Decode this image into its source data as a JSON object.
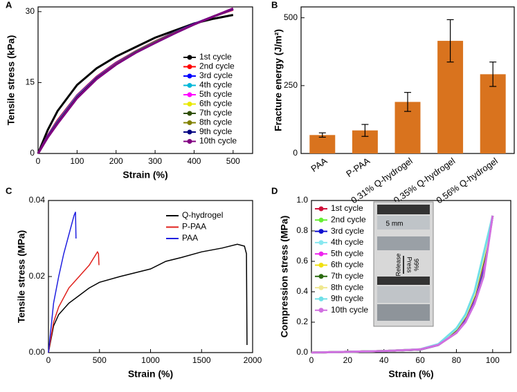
{
  "chart_data": [
    {
      "type": "line",
      "panel": "A",
      "xlabel": "Strain (%)",
      "ylabel": "Tensile stress (kPa)",
      "xlim": [
        0,
        550
      ],
      "ylim": [
        0,
        31
      ],
      "xticks": [
        0,
        100,
        200,
        300,
        400,
        500
      ],
      "yticks": [
        0,
        15,
        30
      ],
      "legend": "lower right",
      "x": [
        0,
        25,
        50,
        100,
        150,
        200,
        250,
        300,
        350,
        400,
        450,
        500
      ],
      "series": [
        {
          "name": "1st cycle",
          "color": "#000000",
          "values": [
            0,
            5,
            9,
            14.5,
            18,
            20.5,
            22.5,
            24.5,
            26,
            27.5,
            28.5,
            29.3
          ]
        },
        {
          "name": "2nd cycle",
          "color": "#ff0000",
          "values": [
            0,
            3.8,
            7,
            12.3,
            16.2,
            19.2,
            21.6,
            23.7,
            25.6,
            27.4,
            29,
            30.4
          ]
        },
        {
          "name": "3rd cycle",
          "color": "#0000ff",
          "values": [
            0,
            3.7,
            6.8,
            12.2,
            16.1,
            19.1,
            21.5,
            23.6,
            25.6,
            27.4,
            29,
            30.5
          ]
        },
        {
          "name": "4th cycle",
          "color": "#00b7d8",
          "values": [
            0,
            3.6,
            6.7,
            12.1,
            16,
            19,
            21.5,
            23.6,
            25.5,
            27.3,
            29,
            30.5
          ]
        },
        {
          "name": "5th cycle",
          "color": "#ff00ff",
          "values": [
            0,
            3.6,
            6.6,
            12,
            16,
            19,
            21.4,
            23.5,
            25.5,
            27.3,
            29,
            30.5
          ]
        },
        {
          "name": "6th cycle",
          "color": "#e8e800",
          "values": [
            0,
            3.5,
            6.5,
            11.9,
            15.9,
            18.9,
            21.4,
            23.5,
            25.5,
            27.3,
            29,
            30.6
          ]
        },
        {
          "name": "7th cycle",
          "color": "#2f4f00",
          "values": [
            0,
            3.5,
            6.5,
            11.9,
            15.9,
            18.9,
            21.4,
            23.5,
            25.5,
            27.3,
            29,
            30.6
          ]
        },
        {
          "name": "8th cycle",
          "color": "#808000",
          "values": [
            0,
            3.5,
            6.4,
            11.8,
            15.8,
            18.9,
            21.3,
            23.5,
            25.5,
            27.3,
            29,
            30.6
          ]
        },
        {
          "name": "9th cycle",
          "color": "#000080",
          "values": [
            0,
            3.5,
            6.4,
            11.8,
            15.8,
            18.8,
            21.3,
            23.4,
            25.4,
            27.3,
            29,
            30.6
          ]
        },
        {
          "name": "10th cycle",
          "color": "#800080",
          "values": [
            0,
            3.4,
            6.3,
            11.7,
            15.7,
            18.8,
            21.3,
            23.4,
            25.4,
            27.3,
            29,
            30.7
          ]
        }
      ]
    },
    {
      "type": "bar",
      "panel": "B",
      "ylabel": "Fracture energy (J/m²)",
      "ylim": [
        0,
        540
      ],
      "yticks": [
        0,
        250,
        500
      ],
      "color": "#d9731e",
      "categories": [
        "PAA",
        "P-PAA",
        "0.31% Q-hydrogel",
        "0.35% Q-hydrogel",
        "0.56% Q-hydrogel"
      ],
      "values": [
        68,
        85,
        190,
        415,
        292
      ],
      "errors": [
        8,
        22,
        35,
        78,
        45
      ]
    },
    {
      "type": "line",
      "panel": "C",
      "xlabel": "Strain (%)",
      "ylabel": "Tensile stress (MPa)",
      "xlim": [
        0,
        2000
      ],
      "ylim": [
        0,
        0.04
      ],
      "xticks": [
        0,
        500,
        1000,
        1500,
        2000
      ],
      "yticks": [
        {
          "value": 0,
          "label": "0.00"
        },
        0.02,
        0.04
      ],
      "legend": "upper right",
      "series": [
        {
          "name": "Q-hydrogel",
          "color": "#000000",
          "x": [
            0,
            50,
            100,
            200,
            300,
            400,
            500,
            700,
            1000,
            1150,
            1300,
            1500,
            1700,
            1850,
            1920,
            1940,
            1945
          ],
          "values": [
            0,
            0.007,
            0.01,
            0.013,
            0.015,
            0.017,
            0.0185,
            0.02,
            0.022,
            0.024,
            0.025,
            0.0265,
            0.0275,
            0.0285,
            0.028,
            0.026,
            0.002
          ]
        },
        {
          "name": "P-PAA",
          "color": "#e0201b",
          "x": [
            0,
            50,
            100,
            200,
            300,
            400,
            480,
            490,
            495
          ],
          "values": [
            0,
            0.008,
            0.012,
            0.017,
            0.02,
            0.023,
            0.0265,
            0.026,
            0.023
          ]
        },
        {
          "name": "PAA",
          "color": "#1f1fe0",
          "x": [
            0,
            50,
            100,
            150,
            200,
            250,
            265,
            270
          ],
          "values": [
            0,
            0.013,
            0.02,
            0.026,
            0.031,
            0.036,
            0.037,
            0.03
          ]
        }
      ]
    },
    {
      "type": "line",
      "panel": "D",
      "xlabel": "Strain (%)",
      "ylabel": "Compression stress (MPa)",
      "xlim": [
        0,
        110
      ],
      "ylim": [
        0,
        1
      ],
      "xticks": [
        0,
        20,
        40,
        60,
        80,
        100
      ],
      "yticks": [
        {
          "value": 0,
          "label": "0.0"
        },
        0.2,
        0.4,
        0.6,
        0.8,
        {
          "value": 1,
          "label": "1.0"
        }
      ],
      "legend": "upper left",
      "annotations": [
        "5 mm",
        "Release",
        "Press",
        "99%"
      ],
      "x": [
        0,
        20,
        40,
        60,
        70,
        80,
        85,
        90,
        95,
        100
      ],
      "series": [
        {
          "name": "1st cycle",
          "color": "#d0103a",
          "values": [
            0,
            0.005,
            0.01,
            0.02,
            0.05,
            0.13,
            0.21,
            0.33,
            0.52,
            0.9
          ]
        },
        {
          "name": "2nd cycle",
          "color": "#66ee33",
          "values": [
            0,
            0.005,
            0.01,
            0.02,
            0.05,
            0.14,
            0.22,
            0.35,
            0.55,
            0.9
          ]
        },
        {
          "name": "3rd cycle",
          "color": "#1010d0",
          "values": [
            0,
            0.005,
            0.01,
            0.02,
            0.05,
            0.14,
            0.22,
            0.35,
            0.56,
            0.9
          ]
        },
        {
          "name": "4th cycle",
          "color": "#88e8f0",
          "values": [
            0,
            0.005,
            0.01,
            0.021,
            0.052,
            0.145,
            0.23,
            0.36,
            0.58,
            0.9
          ]
        },
        {
          "name": "5th cycle",
          "color": "#ee22ee",
          "values": [
            0,
            0.005,
            0.01,
            0.021,
            0.052,
            0.145,
            0.23,
            0.36,
            0.58,
            0.9
          ]
        },
        {
          "name": "6th cycle",
          "color": "#f0e010",
          "values": [
            0,
            0.005,
            0.01,
            0.021,
            0.053,
            0.15,
            0.235,
            0.37,
            0.6,
            0.9
          ]
        },
        {
          "name": "7th cycle",
          "color": "#2a6a10",
          "values": [
            0,
            0.005,
            0.01,
            0.021,
            0.053,
            0.15,
            0.235,
            0.37,
            0.6,
            0.9
          ]
        },
        {
          "name": "8th cycle",
          "color": "#f0e890",
          "values": [
            0,
            0.005,
            0.01,
            0.022,
            0.055,
            0.155,
            0.24,
            0.38,
            0.62,
            0.9
          ]
        },
        {
          "name": "9th cycle",
          "color": "#70e0e8",
          "values": [
            0,
            0.005,
            0.01,
            0.022,
            0.056,
            0.16,
            0.25,
            0.4,
            0.65,
            0.9
          ]
        },
        {
          "name": "10th cycle",
          "color": "#d070e0",
          "values": [
            0,
            0.005,
            0.01,
            0.021,
            0.05,
            0.13,
            0.2,
            0.32,
            0.5,
            0.9
          ]
        }
      ]
    }
  ]
}
